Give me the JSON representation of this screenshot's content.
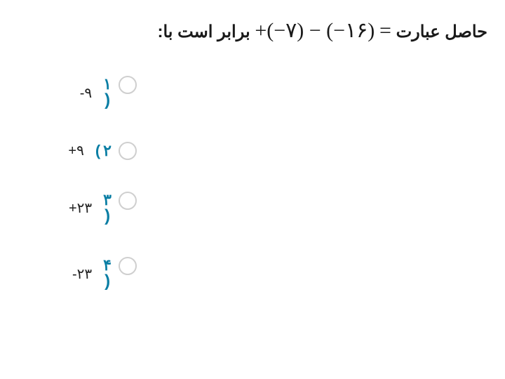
{
  "question": {
    "prefix": "حاصل عبارت",
    "equals": "=",
    "math": "+(−۷) − (−۱۶)",
    "suffix": "برابر است با:"
  },
  "options": [
    {
      "num": "۱",
      "paren": "(",
      "text": "-۹",
      "paren_below": true
    },
    {
      "num": "۲",
      "paren": ")",
      "text": "+۹",
      "paren_below": false
    },
    {
      "num": "۳",
      "paren": "(",
      "text": "+۲۳",
      "paren_below": true
    },
    {
      "num": "۴",
      "paren": "(",
      "text": "-۲۳",
      "paren_below": true
    }
  ],
  "colors": {
    "accent": "#0a7ea4",
    "text": "#1a1a1a",
    "radio_border": "#cfcfcf",
    "background": "#ffffff"
  }
}
